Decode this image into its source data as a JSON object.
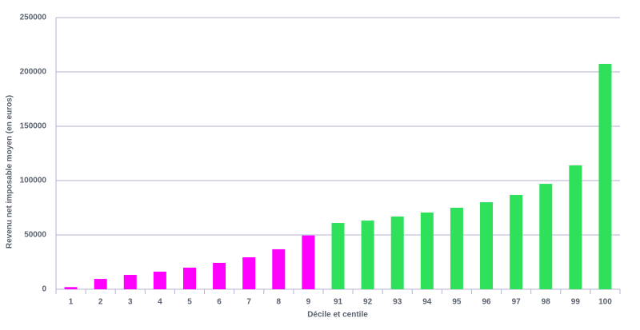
{
  "chart_data": {
    "type": "bar",
    "x_label": "Décile et centile",
    "y_label": "Revenu net imposable moyen (en euros)",
    "categories": [
      "1",
      "2",
      "3",
      "4",
      "5",
      "6",
      "7",
      "8",
      "9",
      "91",
      "92",
      "93",
      "94",
      "95",
      "96",
      "97",
      "98",
      "99",
      "100"
    ],
    "values": [
      2000,
      9500,
      13200,
      16200,
      19900,
      24300,
      29400,
      36800,
      49500,
      61000,
      63200,
      66900,
      70600,
      75000,
      80100,
      86800,
      97000,
      114000,
      207400
    ],
    "colors": [
      "#ff00ff",
      "#ff00ff",
      "#ff00ff",
      "#ff00ff",
      "#ff00ff",
      "#ff00ff",
      "#ff00ff",
      "#ff00ff",
      "#ff00ff",
      "#2ee05a",
      "#2ee05a",
      "#2ee05a",
      "#2ee05a",
      "#2ee05a",
      "#2ee05a",
      "#2ee05a",
      "#2ee05a",
      "#2ee05a",
      "#2ee05a"
    ],
    "ylim": [
      0,
      250000
    ],
    "yticks": [
      0,
      50000,
      100000,
      150000,
      200000,
      250000
    ],
    "grid": true
  }
}
